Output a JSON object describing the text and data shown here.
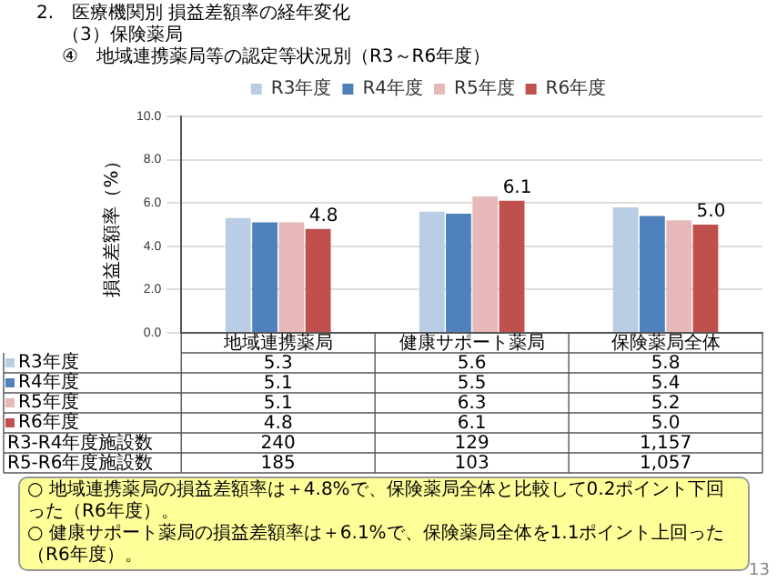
{
  "chart_data": {
    "type": "bar",
    "title": "2.　医療機関別 損益差額率の経年変化",
    "subtitle": "（3）保険薬局\n④　地域連携薬局等の認定等状況別（R3～R6年度）",
    "ylabel": "損益差額率（%）",
    "categories": [
      "地域連携薬局",
      "健康サポート薬局",
      "保険薬局全体"
    ],
    "series": [
      {
        "name": "R3年度",
        "color": "#b9cde5",
        "values": [
          5.3,
          5.6,
          5.8
        ],
        "value_labels": [
          "5.3",
          "5.6",
          "5.8"
        ]
      },
      {
        "name": "R4年度",
        "color": "#4f81bd",
        "values": [
          5.1,
          5.5,
          5.4
        ],
        "value_labels": [
          "5.1",
          "5.5",
          "5.4"
        ]
      },
      {
        "name": "R5年度",
        "color": "#e6b9b8",
        "values": [
          5.1,
          6.3,
          5.2
        ],
        "value_labels": [
          "5.1",
          "6.3",
          "5.2"
        ]
      },
      {
        "name": "R6年度",
        "color": "#c0504d",
        "values": [
          4.8,
          6.1,
          5.0
        ],
        "value_labels": [
          "4.8",
          "6.1",
          "5.0"
        ]
      }
    ],
    "ylim": [
      0,
      10
    ],
    "yticks": [
      {
        "value": 0,
        "label": "0.0"
      },
      {
        "value": 2,
        "label": "2.0"
      },
      {
        "value": 4,
        "label": "4.0"
      },
      {
        "value": 6,
        "label": "6.0"
      },
      {
        "value": 8,
        "label": "8.0"
      },
      {
        "value": 10,
        "label": "10.0"
      }
    ],
    "grid": "y",
    "legend": "top",
    "data_labels": true,
    "annotations": [
      {
        "text": "4.8",
        "x": "地域連携薬局",
        "y": 4.8
      },
      {
        "text": "6.1",
        "x": "健康サポート薬局",
        "y": 6.1
      },
      {
        "text": "5.0",
        "x": "保険薬局全体",
        "y": 5.0
      },
      "R3-R4年度施設数",
      "240",
      "129",
      "1,157",
      "R5-R6年度施設数",
      "185",
      "103",
      "1,057",
      "○ 地域連携薬局の損益差額率は＋4.8%で、保険薬局全体と比較して0.2ポイント下回った（R6年度）。",
      "○ 健康サポート薬局の損益差額率は＋6.1%で、保険薬局全体を1.1ポイント上回った（R6年度）。",
      "13"
    ]
  }
}
